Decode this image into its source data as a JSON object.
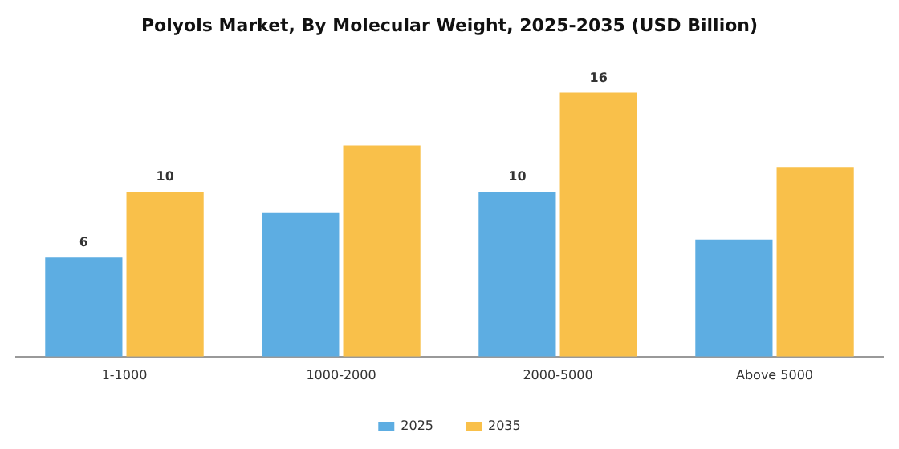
{
  "chart_data": {
    "type": "bar",
    "title": "Polyols Market, By Molecular Weight, 2025-2035 (USD Billion)",
    "categories": [
      "1-1000",
      "1000-2000",
      "2000-5000",
      "Above 5000"
    ],
    "series": [
      {
        "name": "2025",
        "color": "#5dade2",
        "values": [
          6,
          8.7,
          10,
          7.1
        ],
        "value_labels": [
          "6",
          null,
          "10",
          null
        ]
      },
      {
        "name": "2035",
        "color": "#f9c04a",
        "values": [
          10,
          12.8,
          16,
          11.5
        ],
        "value_labels": [
          "10",
          null,
          "16",
          null
        ]
      }
    ],
    "legend": "bottom",
    "grid": false
  }
}
